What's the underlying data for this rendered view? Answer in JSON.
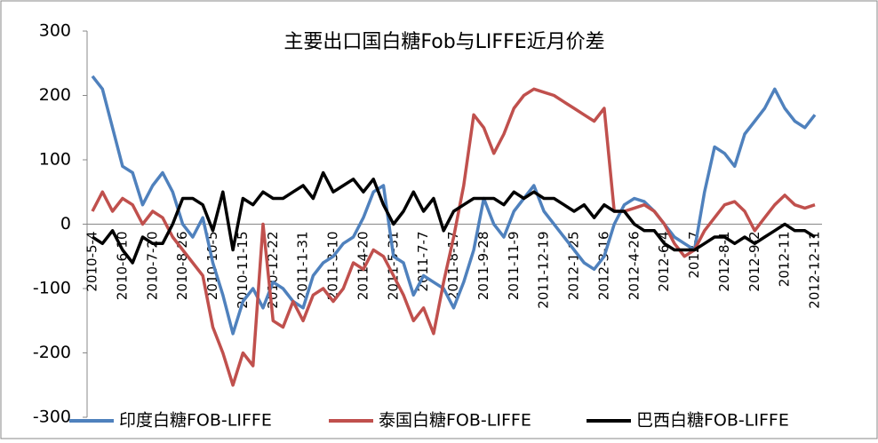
{
  "chart_data": {
    "type": "line",
    "title": "主要出口国白糖Fob与LIFFE近月价差",
    "categories": [
      "2010-5-4",
      null,
      null,
      "2010-6-10",
      null,
      null,
      "2010-7-20",
      null,
      null,
      "2010-8-26",
      null,
      null,
      "2010-10-5",
      null,
      null,
      "2010-11-15",
      null,
      null,
      "2010-12-22",
      null,
      null,
      "2011-1-31",
      null,
      null,
      "2011-3-10",
      null,
      null,
      "2011-4-20",
      null,
      null,
      "2011-5-31",
      null,
      null,
      "2011-7-7",
      null,
      null,
      "2011-8-17",
      null,
      null,
      "2011-9-28",
      null,
      null,
      "2011-11-9",
      null,
      null,
      "2011-12-19",
      null,
      null,
      "2012-1-25",
      null,
      null,
      "2012-3-16",
      null,
      null,
      "2012-4-26",
      null,
      null,
      "2012-6-4",
      null,
      null,
      "2012-7",
      null,
      null,
      "2012-8-1",
      null,
      null,
      "2012-9-2",
      null,
      null,
      "2012-11",
      null,
      null,
      "2012-12-11"
    ],
    "series": [
      {
        "name": "印度白糖FOB-LIFFE",
        "color": "#4f81bd",
        "values": [
          230,
          210,
          150,
          90,
          80,
          30,
          60,
          80,
          50,
          0,
          -20,
          10,
          -60,
          -110,
          -170,
          -120,
          -100,
          -130,
          -90,
          -100,
          -120,
          -130,
          -80,
          -60,
          -50,
          -30,
          -20,
          10,
          50,
          60,
          -50,
          -60,
          -110,
          -80,
          -90,
          -100,
          -130,
          -90,
          -40,
          40,
          0,
          -20,
          20,
          40,
          60,
          20,
          0,
          -20,
          -40,
          -60,
          -70,
          -50,
          0,
          30,
          40,
          35,
          20,
          0,
          -20,
          -30,
          -40,
          50,
          120,
          110,
          90,
          140,
          160,
          180,
          210,
          180,
          160,
          150,
          170
        ]
      },
      {
        "name": "泰国白糖FOB-LIFFE",
        "color": "#c0504d",
        "values": [
          20,
          50,
          20,
          40,
          30,
          0,
          20,
          10,
          -20,
          -40,
          -60,
          -80,
          -160,
          -200,
          -250,
          -200,
          -220,
          0,
          -150,
          -160,
          -120,
          -150,
          -110,
          -100,
          -120,
          -100,
          -60,
          -70,
          -40,
          -50,
          -80,
          -110,
          -150,
          -130,
          -170,
          -90,
          -20,
          60,
          170,
          150,
          110,
          140,
          180,
          200,
          210,
          205,
          200,
          190,
          180,
          170,
          160,
          180,
          20,
          20,
          25,
          30,
          20,
          0,
          -30,
          -50,
          -40,
          -10,
          10,
          30,
          35,
          20,
          -10,
          10,
          30,
          45,
          30,
          25,
          30
        ]
      },
      {
        "name": "巴西白糖FOB-LIFFE",
        "color": "#000000",
        "values": [
          -20,
          -30,
          -10,
          -40,
          -60,
          -20,
          -30,
          -30,
          0,
          40,
          40,
          30,
          -10,
          50,
          -40,
          40,
          30,
          50,
          40,
          40,
          50,
          60,
          40,
          80,
          50,
          60,
          70,
          50,
          70,
          30,
          0,
          20,
          50,
          20,
          40,
          -10,
          20,
          30,
          40,
          40,
          40,
          30,
          50,
          40,
          50,
          40,
          40,
          30,
          20,
          30,
          10,
          30,
          20,
          20,
          0,
          -10,
          -10,
          -30,
          -40,
          -40,
          -40,
          -30,
          -20,
          -20,
          -30,
          -20,
          -30,
          -20,
          -10,
          0,
          -10,
          -10,
          -20
        ]
      }
    ],
    "ylim": [
      -300,
      300
    ],
    "yticks": [
      -300,
      -200,
      -100,
      0,
      100,
      200,
      300
    ],
    "legend": "bottom"
  }
}
